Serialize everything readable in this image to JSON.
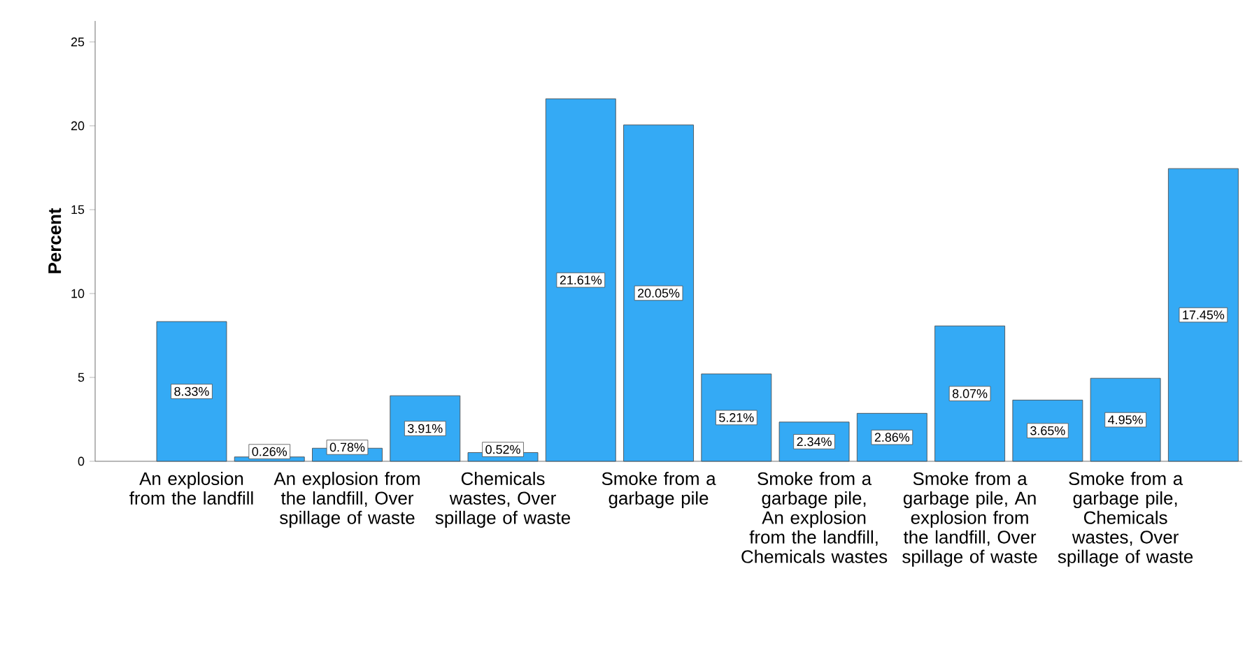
{
  "chart_data": {
    "type": "bar",
    "ylabel": "Percent",
    "categories": [
      "An explosion from the landfill",
      null,
      "An explosion from the landfill, Over spillage of waste",
      null,
      "Chemicals wastes, Over spillage of waste",
      null,
      "Smoke from a garbage pile",
      null,
      "Smoke from a garbage pile, An explosion from the landfill, Chemicals wastes",
      null,
      "Smoke from a garbage pile, An explosion from the landfill, Over spillage of waste",
      null,
      "Smoke from a garbage pile, Chemicals wastes, Over spillage of waste",
      null
    ],
    "values": [
      8.33,
      0.26,
      0.78,
      3.91,
      0.52,
      21.61,
      20.05,
      5.21,
      2.34,
      2.86,
      8.07,
      3.65,
      4.95,
      17.45
    ],
    "value_labels": [
      "8.33%",
      "0.26%",
      "0.78%",
      "3.91%",
      "0.52%",
      "21.61%",
      "20.05%",
      "5.21%",
      "2.34%",
      "2.86%",
      "8.07%",
      "3.65%",
      "4.95%",
      "17.45%"
    ],
    "color": "#34aaf5",
    "ylim": [
      0,
      26.25
    ],
    "yticks": [
      0,
      5,
      10,
      15,
      20,
      25
    ],
    "grid": false
  }
}
